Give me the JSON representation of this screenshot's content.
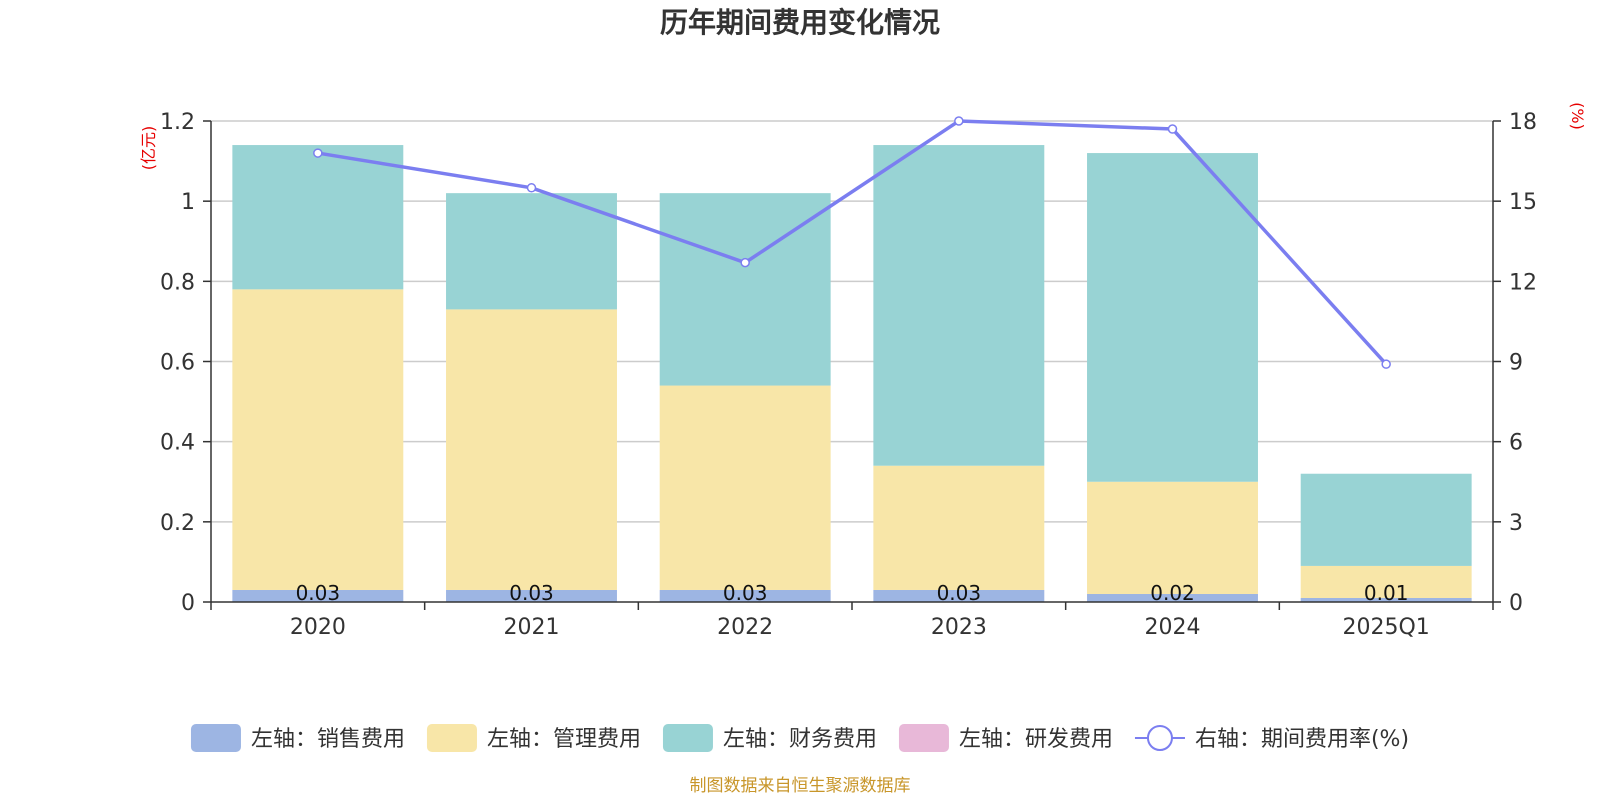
{
  "chart_data": {
    "type": "bar",
    "title": "历年期间费用变化情况",
    "categories": [
      "2020",
      "2021",
      "2022",
      "2023",
      "2024",
      "2025Q1"
    ],
    "left_axis": {
      "unit": "(亿元)",
      "ylim": [
        0,
        1.2
      ],
      "ticks": [
        "0",
        "0.2",
        "0.4",
        "0.6",
        "0.8",
        "1",
        "1.2"
      ]
    },
    "right_axis": {
      "unit": "(%)",
      "ylim": [
        0,
        18
      ],
      "ticks": [
        "0",
        "3",
        "6",
        "9",
        "12",
        "15",
        "18"
      ]
    },
    "series": [
      {
        "name": "左轴：销售费用",
        "kind": "bar",
        "axis": "left",
        "color": "#9db5e3",
        "values": [
          0.03,
          0.03,
          0.03,
          0.03,
          0.02,
          0.01
        ],
        "labels": [
          "0.03",
          "0.03",
          "0.03",
          "0.03",
          "0.02",
          "0.01"
        ]
      },
      {
        "name": "左轴：管理费用",
        "kind": "bar",
        "axis": "left",
        "color": "#f8e6a8",
        "values": [
          0.75,
          0.7,
          0.51,
          0.31,
          0.28,
          0.08
        ]
      },
      {
        "name": "左轴：财务费用",
        "kind": "bar",
        "axis": "left",
        "color": "#98d3d4",
        "values": [
          0.36,
          0.29,
          0.48,
          0.8,
          0.82,
          0.23
        ]
      },
      {
        "name": "左轴：研发费用",
        "kind": "bar",
        "axis": "left",
        "color": "#e8b8d8",
        "values": [
          0,
          0,
          0,
          0,
          0,
          0
        ]
      },
      {
        "name": "右轴：期间费用率(%)",
        "kind": "line",
        "axis": "right",
        "color": "#7b7ef0",
        "values": [
          16.8,
          15.5,
          12.7,
          18.0,
          17.7,
          8.9
        ]
      }
    ],
    "grid": true,
    "legend": "bottom"
  },
  "source_text": "制图数据来自恒生聚源数据库"
}
